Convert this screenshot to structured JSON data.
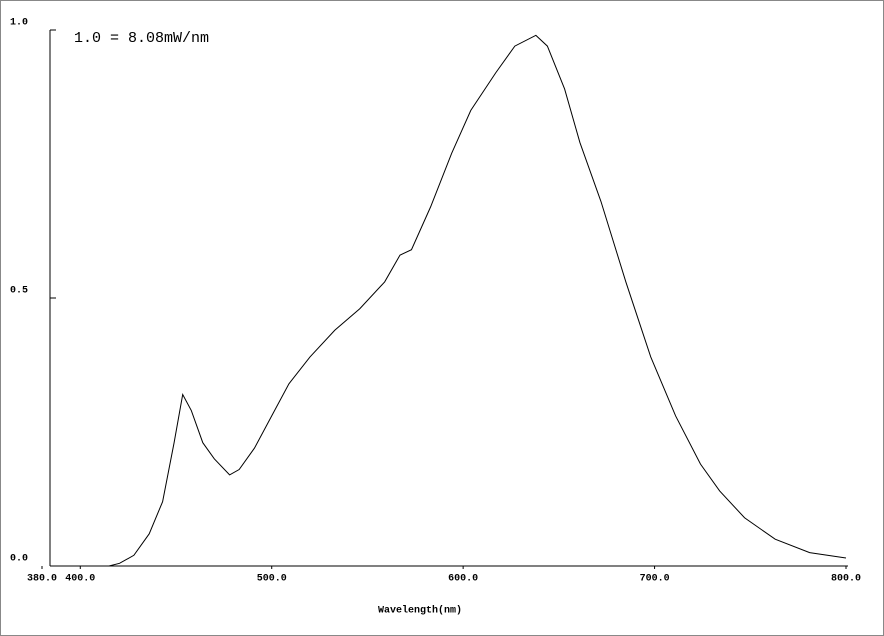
{
  "chart_data": {
    "type": "line",
    "annotation": "1.0 = 8.08mW/nm",
    "xlabel": "Wavelength(nm)",
    "xlim": [
      380,
      800
    ],
    "ylim": [
      0,
      1
    ],
    "xticks": [
      {
        "value": 380,
        "label": "380.0"
      },
      {
        "value": 400,
        "label": "400.0"
      },
      {
        "value": 500,
        "label": "500.0"
      },
      {
        "value": 600,
        "label": "600.0"
      },
      {
        "value": 700,
        "label": "700.0"
      },
      {
        "value": 800,
        "label": "800.0"
      }
    ],
    "yticks": [
      {
        "value": 0,
        "label": "0.0"
      },
      {
        "value": 0.5,
        "label": "0.5"
      },
      {
        "value": 1,
        "label": "1.0"
      }
    ],
    "color": "#000000",
    "x": [
      390,
      415,
      420.5,
      428,
      436,
      443,
      449,
      453.5,
      458,
      464,
      470,
      478,
      483,
      491,
      500,
      509,
      520,
      533,
      546,
      559,
      567,
      573,
      583,
      594,
      604,
      617,
      627,
      638,
      644,
      653,
      661,
      672,
      685,
      698,
      711,
      724,
      734,
      747,
      763,
      781,
      800
    ],
    "values": [
      0,
      0,
      0.005,
      0.02,
      0.06,
      0.12,
      0.23,
      0.32,
      0.29,
      0.23,
      0.2,
      0.17,
      0.18,
      0.22,
      0.28,
      0.34,
      0.39,
      0.44,
      0.48,
      0.53,
      0.58,
      0.59,
      0.67,
      0.77,
      0.85,
      0.92,
      0.97,
      0.99,
      0.97,
      0.89,
      0.79,
      0.68,
      0.53,
      0.39,
      0.28,
      0.19,
      0.14,
      0.09,
      0.05,
      0.025,
      0.015
    ]
  }
}
